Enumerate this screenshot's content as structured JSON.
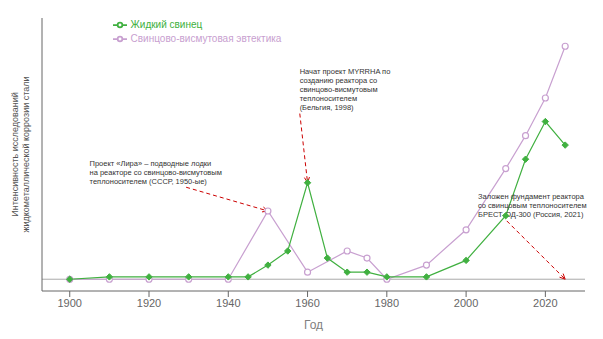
{
  "chart_data": {
    "type": "line",
    "xlabel": "Год",
    "ylabel": "Интенсивность исследований\nжидкометаллической коррозии стали",
    "series": [
      {
        "name": "Свинцово-висмутовая эвтектика",
        "color": "#c8a0d0",
        "marker": "open_circle",
        "x": [
          1900,
          1910,
          1920,
          1930,
          1940,
          1950,
          1960,
          1970,
          1975,
          1980,
          1990,
          2000,
          2010,
          2015,
          2020,
          2025
        ],
        "values": [
          0.01,
          0.01,
          0.01,
          0.01,
          0.01,
          0.3,
          0.04,
          0.13,
          0.1,
          0.01,
          0.07,
          0.22,
          0.48,
          0.62,
          0.78,
          1.0
        ]
      },
      {
        "name": "Жидкий свинец",
        "color": "#40b040",
        "marker": "diamond",
        "x": [
          1900,
          1910,
          1920,
          1930,
          1940,
          1945,
          1950,
          1955,
          1960,
          1965,
          1970,
          1975,
          1980,
          1990,
          2000,
          2010,
          2015,
          2020,
          2025
        ],
        "values": [
          0.01,
          0.02,
          0.02,
          0.02,
          0.02,
          0.02,
          0.07,
          0.13,
          0.42,
          0.1,
          0.04,
          0.04,
          0.02,
          0.02,
          0.09,
          0.28,
          0.52,
          0.68,
          0.58
        ]
      }
    ],
    "annotations": [
      {
        "text": "Проект «Лира» – подводные лодки\nна реакторе со свинцово-висмутовым\nтеплоносителем (СССР, 1950-ые)",
        "xy": [
          1950,
          0.3
        ],
        "text_xy": [
          1905,
          0.52
        ],
        "color": "#cc0000"
      },
      {
        "text": "Начат проект MYRRHA по\nсозданию реактора со\nсвинцово-висмутовым\nтеплоносителем\n(Бельгия, 1998)",
        "xy": [
          1960,
          0.42
        ],
        "text_xy": [
          1958,
          0.72
        ],
        "color": "#cc0000"
      },
      {
        "text": "Заложен фундамент реактора\nсо свинцовым теплоносителем\nБРЕСТ-ОД-300 (Россия, 2021)",
        "xy": [
          2025,
          0.01
        ],
        "text_xy": [
          2003,
          0.38
        ],
        "color": "#cc0000"
      }
    ],
    "hlines": [
      0.01
    ],
    "xlim": [
      1893,
      2030
    ],
    "ylim": [
      -0.04,
      1.12
    ],
    "xticks": [
      1900,
      1920,
      1940,
      1960,
      1980,
      2000,
      2020
    ],
    "yticks": [],
    "tick_labels": "x",
    "grid": false,
    "legend": "upper left"
  }
}
